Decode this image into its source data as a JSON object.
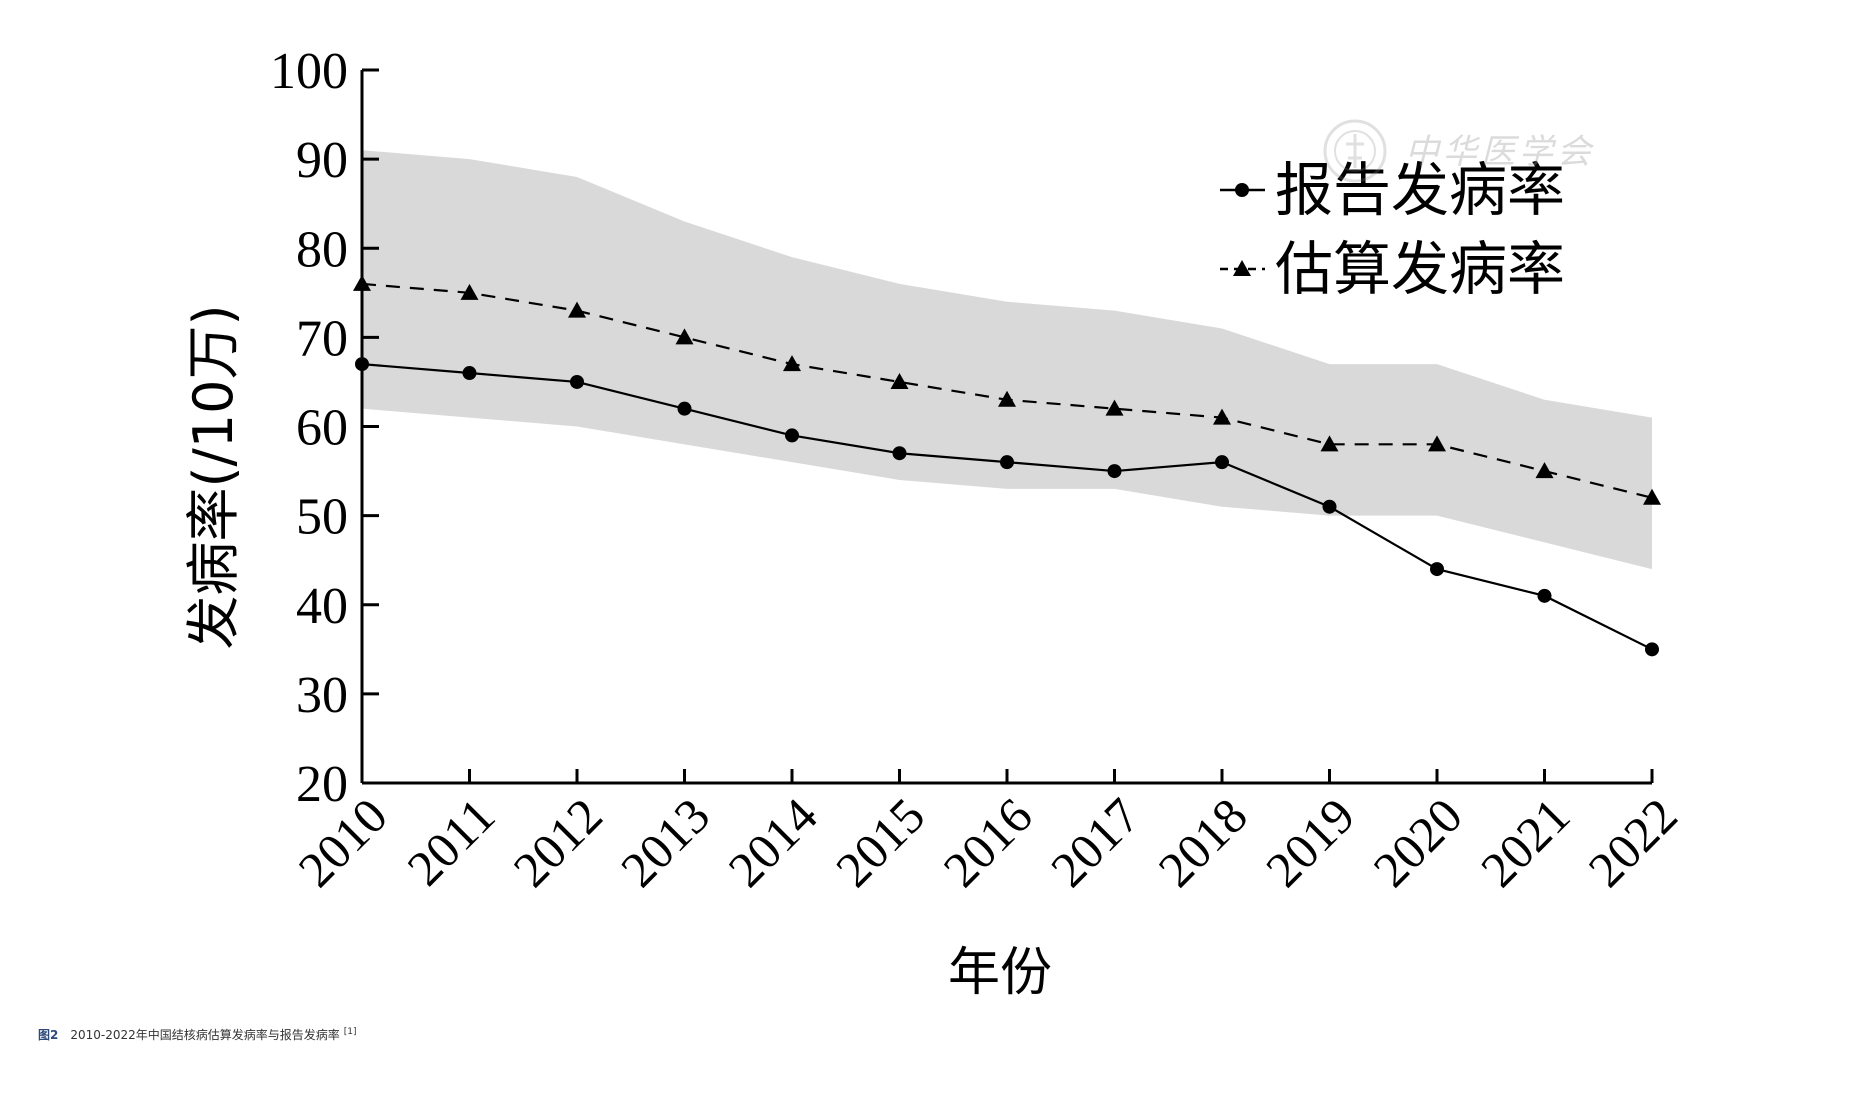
{
  "chart_data": {
    "type": "line",
    "xlabel": "年份",
    "ylabel": "发病率(/10万)",
    "x": [
      2010,
      2011,
      2012,
      2013,
      2014,
      2015,
      2016,
      2017,
      2018,
      2019,
      2020,
      2021,
      2022
    ],
    "ylim": [
      20,
      100
    ],
    "yticks": [
      20,
      30,
      40,
      50,
      60,
      70,
      80,
      90,
      100
    ],
    "series": [
      {
        "name": "报告发病率",
        "marker": "circle",
        "line": "solid",
        "values": [
          67,
          66,
          65,
          62,
          59,
          57,
          56,
          55,
          56,
          51,
          44,
          41,
          35
        ]
      },
      {
        "name": "估算发病率",
        "marker": "triangle",
        "line": "dashed",
        "values": [
          76,
          75,
          73,
          70,
          67,
          65,
          63,
          62,
          61,
          58,
          58,
          55,
          52
        ]
      }
    ],
    "band": {
      "upper": [
        91,
        90,
        88,
        83,
        79,
        76,
        74,
        73,
        71,
        67,
        67,
        63,
        61
      ],
      "lower": [
        62,
        61,
        60,
        58,
        56,
        54,
        53,
        53,
        51,
        50,
        50,
        47,
        44
      ],
      "color": "#d9d9d9"
    },
    "legend_position": "top-right",
    "grid": false,
    "line_color": "#000000"
  },
  "caption": {
    "figure_label": "图2",
    "text": "2010-2022年中国结核病估算发病率与报告发病率",
    "ref": "[1]"
  },
  "watermark": {
    "text": "中华医学会"
  }
}
